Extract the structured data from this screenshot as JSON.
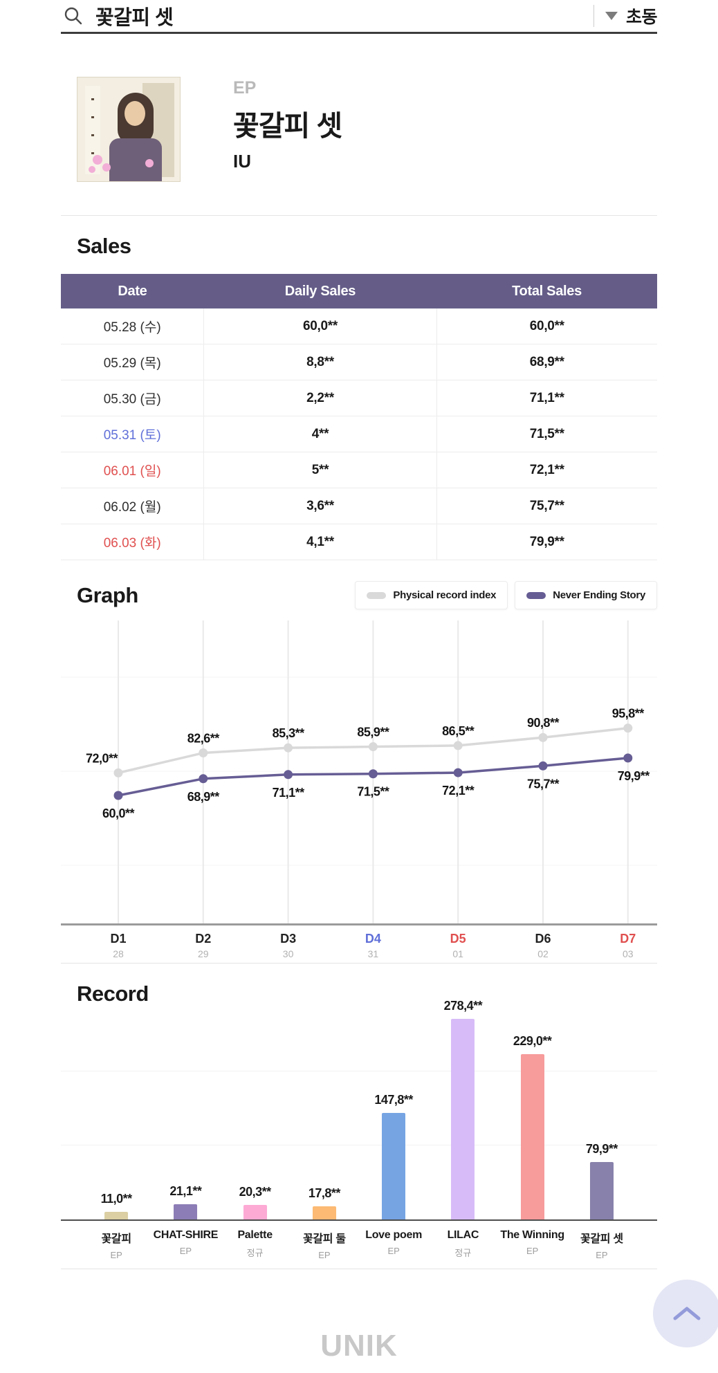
{
  "header": {
    "search_query": "꽃갈피 셋",
    "sort_label": "초동"
  },
  "album": {
    "type": "EP",
    "title": "꽃갈피 셋",
    "artist": "IU"
  },
  "sales": {
    "heading": "Sales",
    "columns": [
      "Date",
      "Daily Sales",
      "Total Sales"
    ],
    "rows": [
      {
        "date": "05.28 (수)",
        "daily": "60,0**",
        "total": "60,0**",
        "color": "default"
      },
      {
        "date": "05.29 (목)",
        "daily": "8,8**",
        "total": "68,9**",
        "color": "default"
      },
      {
        "date": "05.30 (금)",
        "daily": "2,2**",
        "total": "71,1**",
        "color": "default"
      },
      {
        "date": "05.31 (토)",
        "daily": "4**",
        "total": "71,5**",
        "color": "blue"
      },
      {
        "date": "06.01 (일)",
        "daily": "5**",
        "total": "72,1**",
        "color": "red"
      },
      {
        "date": "06.02 (월)",
        "daily": "3,6**",
        "total": "75,7**",
        "color": "default"
      },
      {
        "date": "06.03 (화)",
        "daily": "4,1**",
        "total": "79,9**",
        "color": "red"
      }
    ]
  },
  "graph": {
    "heading": "Graph"
  },
  "record": {
    "heading": "Record"
  },
  "footer": {
    "logo": "UNIK"
  },
  "colors": {
    "table_header": "#655d88",
    "line_gray": "#d9d9d9",
    "line_purple": "#665d94",
    "date_blue": "#5f6fd8",
    "date_red": "#e04f4f"
  },
  "chart_data": [
    {
      "type": "line",
      "title": "Graph",
      "x": [
        "D1",
        "D2",
        "D3",
        "D4",
        "D5",
        "D6",
        "D7"
      ],
      "x_sub": [
        "28",
        "29",
        "30",
        "31",
        "01",
        "02",
        "03"
      ],
      "x_colors": [
        "black",
        "black",
        "black",
        "blue",
        "red",
        "black",
        "red"
      ],
      "grid": true,
      "legend_position": "top-right",
      "legend": [
        {
          "label": "Physical record index",
          "color": "#d9d9d9"
        },
        {
          "label": "Never Ending Story",
          "color": "#665d94"
        }
      ],
      "series": [
        {
          "name": "Physical record index",
          "color": "#d9d9d9",
          "label_side": "above",
          "values": [
            72.0,
            82.6,
            85.3,
            85.9,
            86.5,
            90.8,
            95.8
          ],
          "labels": [
            "72,0**",
            "82,6**",
            "85,3**",
            "85,9**",
            "86,5**",
            "90,8**",
            "95,8**"
          ]
        },
        {
          "name": "Never Ending Story",
          "color": "#665d94",
          "label_side": "below",
          "values": [
            60.0,
            68.9,
            71.1,
            71.5,
            72.1,
            75.7,
            79.9
          ],
          "labels": [
            "60,0**",
            "68,9**",
            "71,1**",
            "71,5**",
            "72,1**",
            "75,7**",
            "79,9**"
          ]
        }
      ]
    },
    {
      "type": "bar",
      "title": "Record",
      "categories": [
        "꽃갈피",
        "CHAT-SHIRE",
        "Palette",
        "꽃갈피 둘",
        "Love poem",
        "LILAC",
        "The Winning",
        "꽃갈피 셋"
      ],
      "category_types": [
        "EP",
        "EP",
        "정규",
        "EP",
        "EP",
        "정규",
        "EP",
        "EP"
      ],
      "values": [
        11.0,
        21.1,
        20.3,
        17.8,
        147.8,
        278.4,
        229.0,
        79.9
      ],
      "labels": [
        "11,0**",
        "21,1**",
        "20,3**",
        "17,8**",
        "147,8**",
        "278,4**",
        "229,0**",
        "79,9**"
      ],
      "colors": [
        "#dbcfa3",
        "#8c7db6",
        "#fdaad5",
        "#fcba74",
        "#76a4e3",
        "#d7bbf8",
        "#f79b9b",
        "#8781ab"
      ]
    }
  ]
}
